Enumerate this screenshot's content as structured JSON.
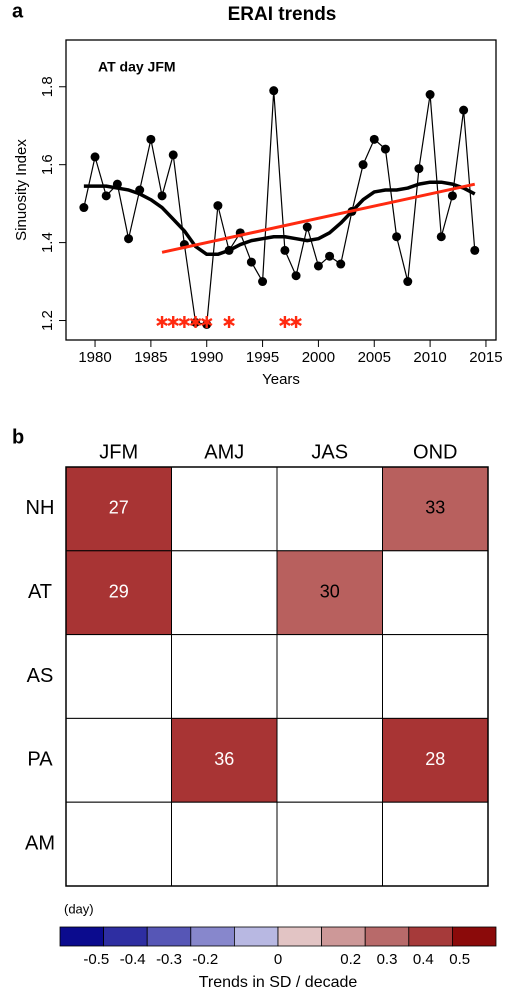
{
  "chart_data": [
    {
      "type": "line",
      "panel": "a",
      "title": "ERAI trends",
      "annotation": "AT day JFM",
      "x_label": "Years",
      "y_label": "Sinuosity Index",
      "x": [
        1979,
        1980,
        1981,
        1982,
        1983,
        1984,
        1985,
        1986,
        1987,
        1988,
        1989,
        1990,
        1991,
        1992,
        1993,
        1994,
        1995,
        1996,
        1997,
        1998,
        1999,
        2000,
        2001,
        2002,
        2003,
        2004,
        2005,
        2006,
        2007,
        2008,
        2009,
        2010,
        2011,
        2012,
        2013,
        2014
      ],
      "series": [
        {
          "color": "#000000",
          "markers": true,
          "width": 1.2,
          "values": [
            1.49,
            1.62,
            1.52,
            1.55,
            1.41,
            1.535,
            1.665,
            1.52,
            1.625,
            1.395,
            1.195,
            1.19,
            1.495,
            1.38,
            1.425,
            1.35,
            1.3,
            1.79,
            1.38,
            1.315,
            1.44,
            1.34,
            1.365,
            1.345,
            1.48,
            1.6,
            1.665,
            1.64,
            1.415,
            1.3,
            1.59,
            1.78,
            1.415,
            1.52,
            1.74,
            1.38
          ]
        },
        {
          "color": "#000000",
          "markers": false,
          "width": 3.5,
          "values": [
            1.545,
            1.545,
            1.545,
            1.54,
            1.535,
            1.525,
            1.51,
            1.49,
            1.46,
            1.43,
            1.39,
            1.37,
            1.37,
            1.38,
            1.395,
            1.405,
            1.41,
            1.415,
            1.415,
            1.41,
            1.405,
            1.41,
            1.425,
            1.45,
            1.48,
            1.51,
            1.53,
            1.535,
            1.535,
            1.54,
            1.55,
            1.555,
            1.555,
            1.55,
            1.54,
            1.525
          ]
        },
        {
          "color": "#ff2a10",
          "markers": false,
          "width": 3,
          "x": [
            1986,
            2014
          ],
          "values": [
            1.375,
            1.55
          ]
        }
      ],
      "significant_years": [
        1986,
        1987,
        1988,
        1989,
        1990,
        1992,
        1997,
        1998
      ],
      "significant_color": "#ff2a10",
      "xlim": [
        1977.4,
        2015.9
      ],
      "xticks": [
        1980,
        1985,
        1990,
        1995,
        2000,
        2005,
        2010,
        2015
      ],
      "ylim": [
        1.15,
        1.92
      ],
      "yticks": [
        1.2,
        1.4,
        1.6,
        1.8
      ]
    },
    {
      "type": "heatmap",
      "panel": "b",
      "note": "(day)",
      "columns": [
        "JFM",
        "AMJ",
        "JAS",
        "OND"
      ],
      "rows": [
        "NH",
        "AT",
        "AS",
        "PA",
        "AM"
      ],
      "values": [
        [
          27,
          null,
          null,
          33
        ],
        [
          29,
          null,
          30,
          null
        ],
        [
          null,
          null,
          null,
          null
        ],
        [
          null,
          36,
          null,
          28
        ],
        [
          null,
          null,
          null,
          null
        ]
      ],
      "colors": [
        [
          "#a83434",
          "#ffffff",
          "#ffffff",
          "#b8605e"
        ],
        [
          "#a83434",
          "#ffffff",
          "#b8605e",
          "#ffffff"
        ],
        [
          "#ffffff",
          "#ffffff",
          "#ffffff",
          "#ffffff"
        ],
        [
          "#ffffff",
          "#a83434",
          "#ffffff",
          "#a83434"
        ],
        [
          "#ffffff",
          "#ffffff",
          "#ffffff",
          "#ffffff"
        ]
      ],
      "text_colors": [
        [
          "#ffffff",
          null,
          null,
          "#000000"
        ],
        [
          "#ffffff",
          null,
          "#000000",
          null
        ],
        [
          null,
          null,
          null,
          null
        ],
        [
          null,
          "#ffffff",
          null,
          "#ffffff"
        ],
        [
          null,
          null,
          null,
          null
        ]
      ],
      "colorbar": {
        "label": "Trends in SD / decade",
        "lim": [
          -0.6,
          0.6
        ],
        "colors": [
          "#0b0b8e",
          "#2e2ea2",
          "#5656b6",
          "#8787cc",
          "#b8b8e2",
          "#e2c4c4",
          "#cd9898",
          "#b86a6a",
          "#a63a3a",
          "#8b0a0a"
        ],
        "ticks": [
          -0.5,
          -0.4,
          -0.3,
          -0.2,
          0,
          0.2,
          0.3,
          0.4,
          0.5
        ]
      }
    }
  ]
}
